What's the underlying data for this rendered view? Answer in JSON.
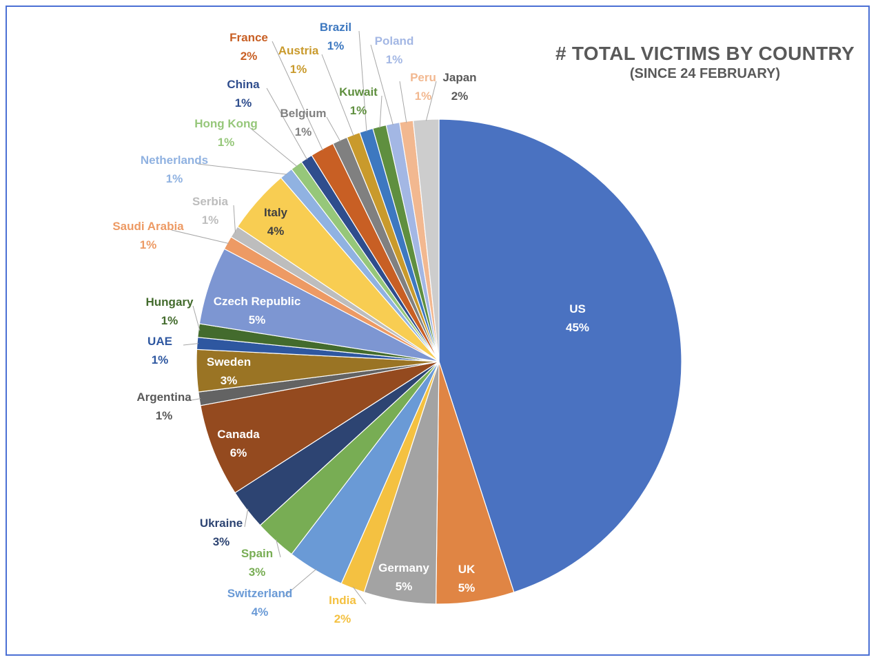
{
  "chart_data": {
    "type": "pie",
    "title": "# TOTAL VICTIMS BY COUNTRY",
    "subtitle": "(SINCE 24 FEBRUARY)",
    "start_angle_deg": 0,
    "direction": "clockwise",
    "legend": "none",
    "slices": [
      {
        "label": "US",
        "percent_label": "45%",
        "value": 45,
        "color": "#4a72c1"
      },
      {
        "label": "UK",
        "percent_label": "5%",
        "value": 5.2,
        "color": "#e08544"
      },
      {
        "label": "Germany",
        "percent_label": "5%",
        "value": 4.8,
        "color": "#a3a3a3"
      },
      {
        "label": "India",
        "percent_label": "2%",
        "value": 1.6,
        "color": "#f4c141"
      },
      {
        "label": "Switzerland",
        "percent_label": "4%",
        "value": 3.8,
        "color": "#6a9ad6"
      },
      {
        "label": "Spain",
        "percent_label": "3%",
        "value": 2.8,
        "color": "#78ad54"
      },
      {
        "label": "Ukraine",
        "percent_label": "3%",
        "value": 2.7,
        "color": "#2d4472"
      },
      {
        "label": "Canada",
        "percent_label": "6%",
        "value": 6.2,
        "color": "#944a1f"
      },
      {
        "label": "Argentina",
        "percent_label": "1%",
        "value": 0.9,
        "color": "#636363"
      },
      {
        "label": "Sweden",
        "percent_label": "3%",
        "value": 2.8,
        "color": "#9a7424"
      },
      {
        "label": "UAE",
        "percent_label": "1%",
        "value": 0.8,
        "color": "#2e57a0"
      },
      {
        "label": "Hungary",
        "percent_label": "1%",
        "value": 0.9,
        "color": "#436b2d"
      },
      {
        "label": "Czech Republic",
        "percent_label": "5%",
        "value": 5.2,
        "color": "#7d96d2"
      },
      {
        "label": "Saudi Arabia",
        "percent_label": "1%",
        "value": 0.9,
        "color": "#ed9a64"
      },
      {
        "label": "Serbia",
        "percent_label": "1%",
        "value": 0.8,
        "color": "#bdbdbd"
      },
      {
        "label": "Italy",
        "percent_label": "4%",
        "value": 4.3,
        "color": "#f8cd52"
      },
      {
        "label": "Netherlands",
        "percent_label": "1%",
        "value": 0.9,
        "color": "#90b2e1"
      },
      {
        "label": "Hong Kong",
        "percent_label": "1%",
        "value": 0.8,
        "color": "#96c77a"
      },
      {
        "label": "China",
        "percent_label": "1%",
        "value": 0.8,
        "color": "#2f4d8d"
      },
      {
        "label": "France",
        "percent_label": "2%",
        "value": 1.6,
        "color": "#c85f24"
      },
      {
        "label": "Belgium",
        "percent_label": "1%",
        "value": 1.0,
        "color": "#808080"
      },
      {
        "label": "Austria",
        "percent_label": "1%",
        "value": 0.9,
        "color": "#c99a2c"
      },
      {
        "label": "Brazil",
        "percent_label": "1%",
        "value": 0.9,
        "color": "#3d78c0"
      },
      {
        "label": "Kuwait",
        "percent_label": "1%",
        "value": 0.9,
        "color": "#5f8f3f"
      },
      {
        "label": "Poland",
        "percent_label": "1%",
        "value": 0.9,
        "color": "#a3b7e4"
      },
      {
        "label": "Peru",
        "percent_label": "1%",
        "value": 0.9,
        "color": "#f2b890"
      },
      {
        "label": "Japan",
        "percent_label": "2%",
        "value": 1.7,
        "color": "#cdcdcd"
      }
    ]
  }
}
